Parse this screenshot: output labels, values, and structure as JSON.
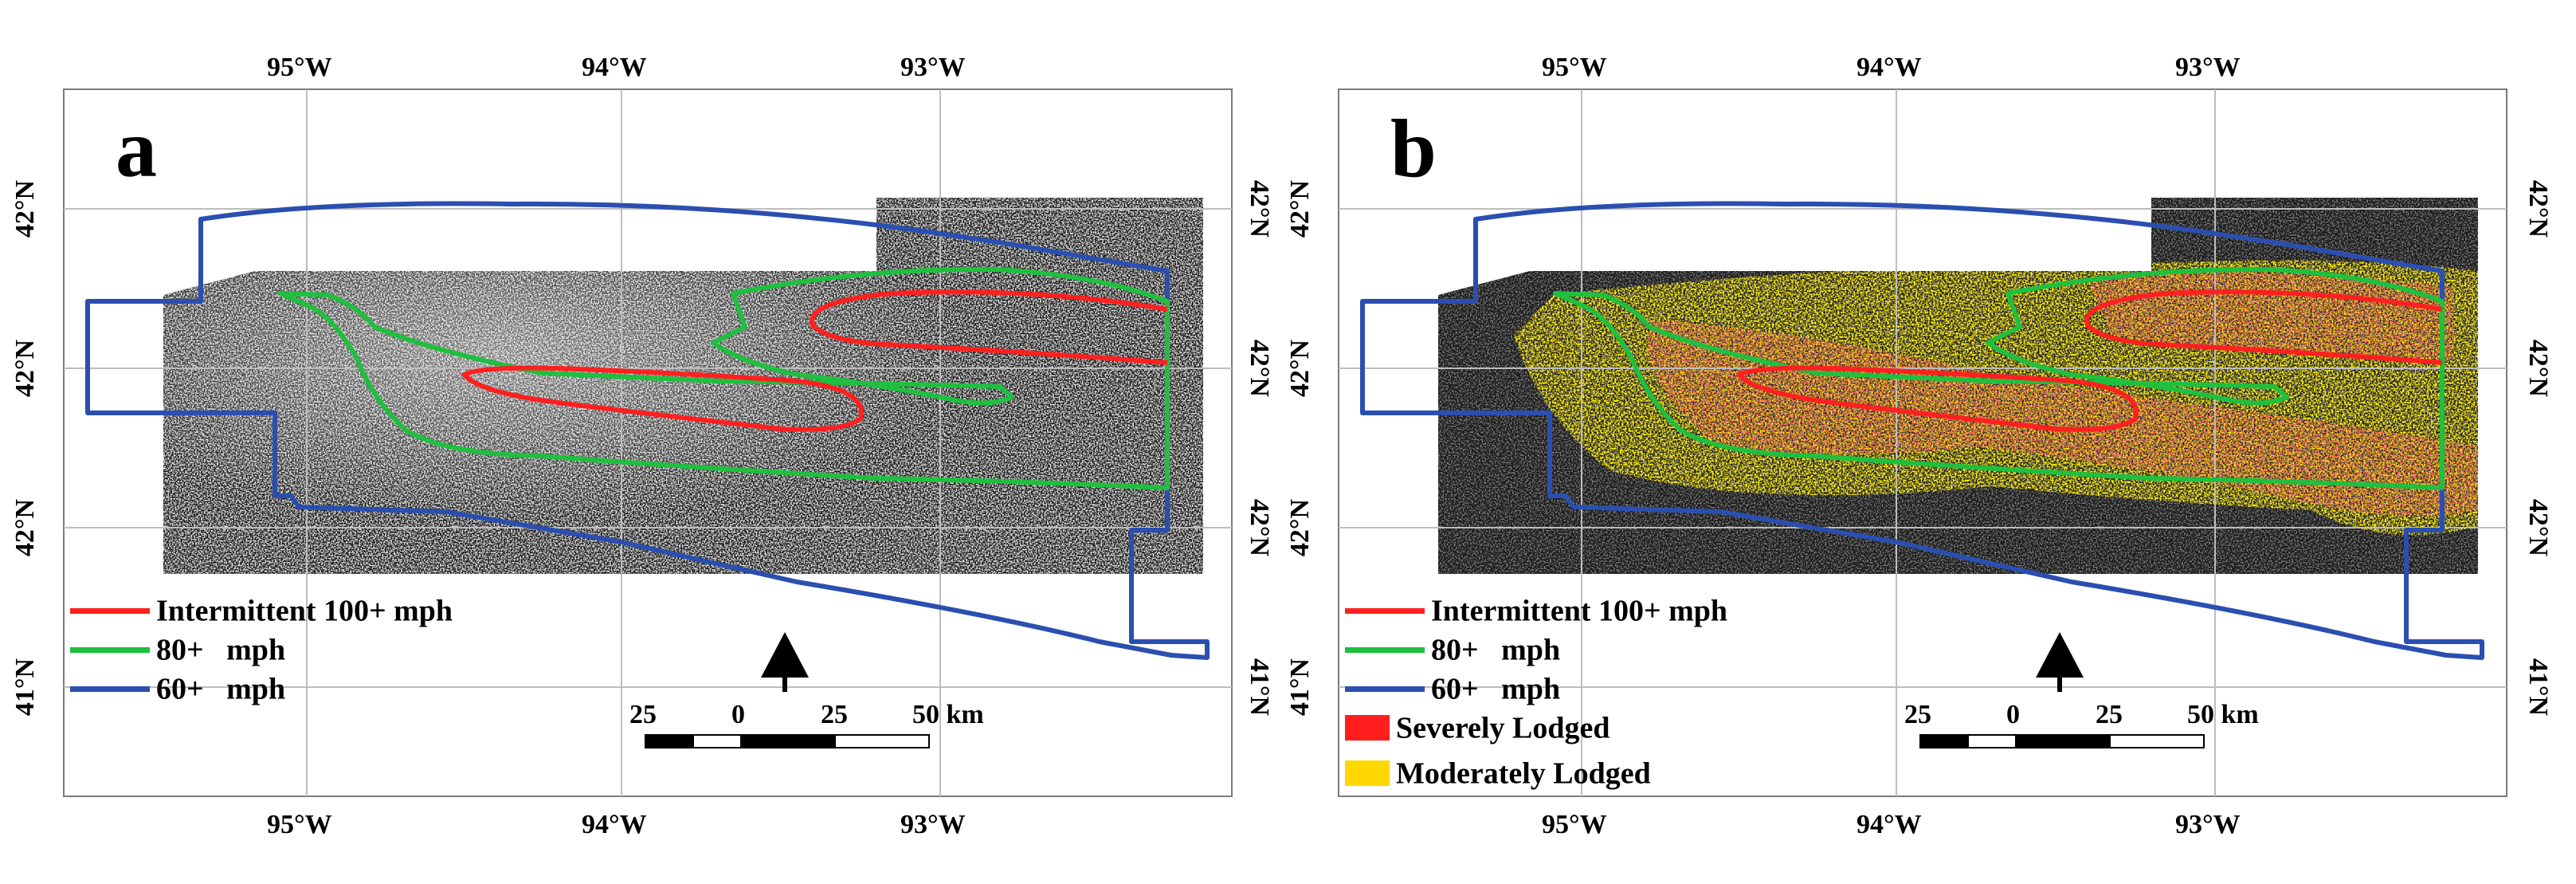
{
  "figure": {
    "panels": [
      {
        "letter": "a",
        "shows_lodging": false
      },
      {
        "letter": "b",
        "shows_lodging": true
      }
    ]
  },
  "axes": {
    "top_ticks": [
      "95°W",
      "94°W",
      "93°W"
    ],
    "bottom_ticks": [
      "95°W",
      "94°W",
      "93°W"
    ],
    "left_ticks": [
      "42°N",
      "42°N",
      "42°N",
      "41°N"
    ],
    "right_ticks": [
      "42°N",
      "42°N",
      "42°N",
      "41°N"
    ]
  },
  "legend": {
    "wind_zones": [
      {
        "label": "Intermittent 100+ mph",
        "color": "#ff2020"
      },
      {
        "label": "80+   mph",
        "color": "#1fbf3f"
      },
      {
        "label": "60+   mph",
        "color": "#2a4fb0"
      }
    ],
    "lodging_classes": [
      {
        "label": "Severely Lodged",
        "color": "#ff1e1e"
      },
      {
        "label": "Moderately Lodged",
        "color": "#ffd700"
      }
    ]
  },
  "scale_bar": {
    "ticks": [
      "25",
      "0",
      "25",
      "50 km"
    ]
  },
  "north_arrow": {
    "icon": "north-arrow-icon"
  },
  "colors": {
    "imagery": "#1b1b1b",
    "gridline": "#bdbdbd",
    "zone_100": "#ff2020",
    "zone_80": "#1fbf3f",
    "zone_60": "#2a4fb0"
  }
}
